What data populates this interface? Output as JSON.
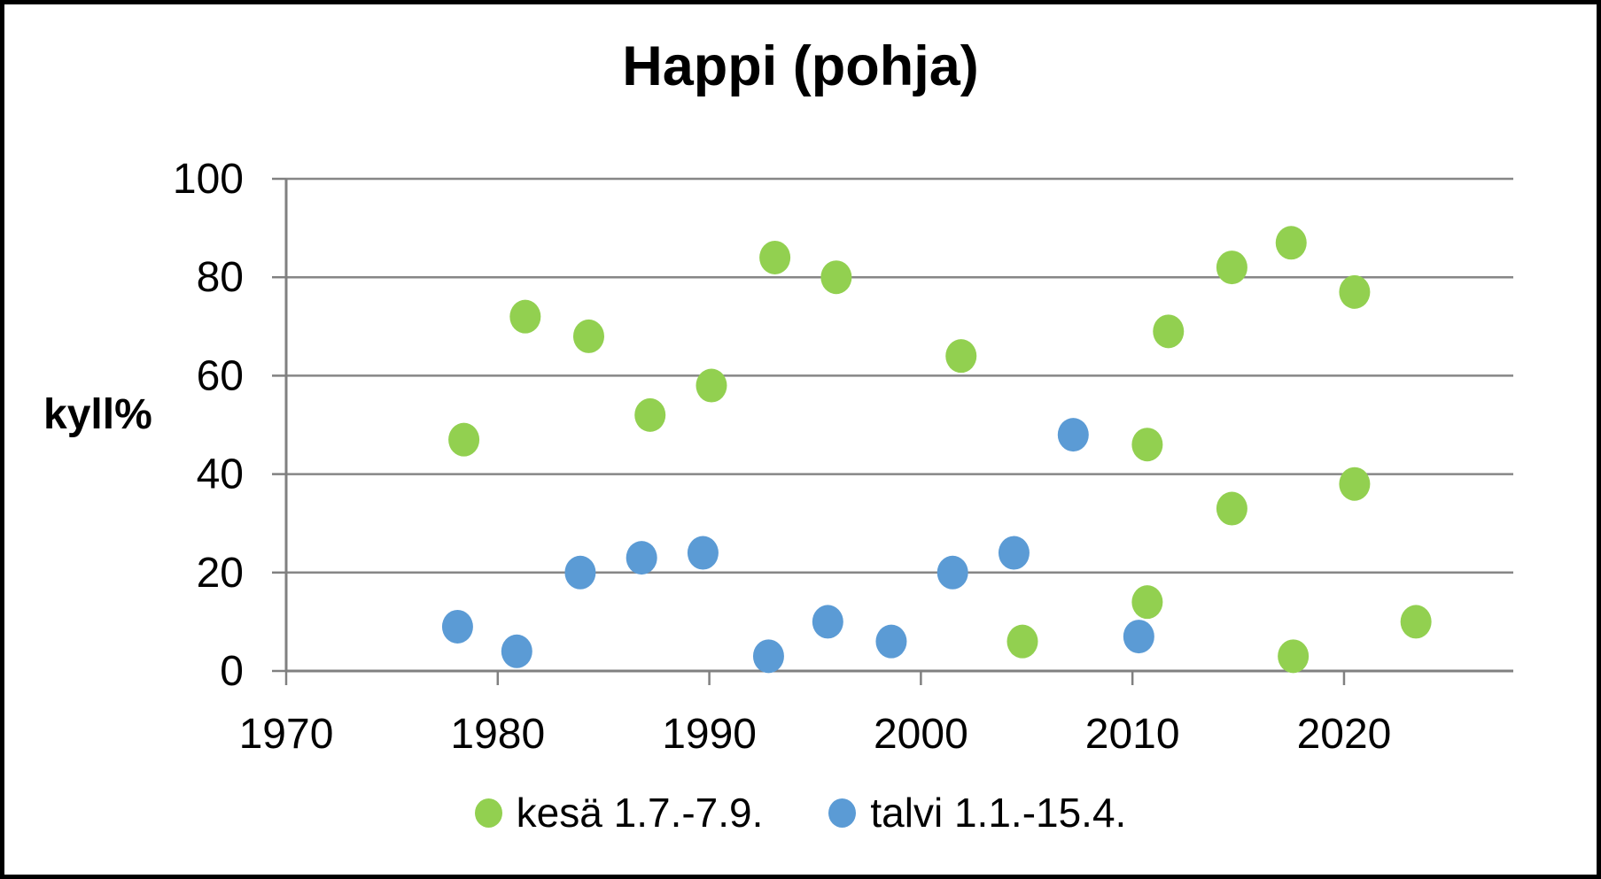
{
  "title": "Happi (pohja)",
  "y_axis_label": "kyll%",
  "legend": [
    {
      "label": "kesä 1.7.-7.9.",
      "color": "#92d050"
    },
    {
      "label": "talvi 1.1.-15.4.",
      "color": "#5b9bd5"
    }
  ],
  "colors": {
    "grid": "#868686",
    "axis": "#808080",
    "text": "#000000",
    "background": "#ffffff",
    "frame": "#000000",
    "kesa_green": "#92d050",
    "talvi_blue": "#5b9bd5"
  },
  "chart_data": {
    "type": "scatter",
    "title": "Happi (pohja)",
    "xlabel": "",
    "ylabel": "kyll%",
    "xlim": [
      1970,
      2028
    ],
    "ylim": [
      0,
      100
    ],
    "x_ticks": [
      1970,
      1980,
      1990,
      2000,
      2010,
      2020
    ],
    "y_ticks": [
      0,
      20,
      40,
      60,
      80,
      100
    ],
    "grid": "horizontal",
    "legend_position": "bottom",
    "series": [
      {
        "name": "kesä 1.7.-7.9.",
        "color": "#92d050",
        "points": [
          [
            1978.4,
            47
          ],
          [
            1981.3,
            72
          ],
          [
            1984.3,
            68
          ],
          [
            1987.2,
            52
          ],
          [
            1990.1,
            58
          ],
          [
            1993.1,
            84
          ],
          [
            1996.0,
            80
          ],
          [
            2001.9,
            64
          ],
          [
            2004.8,
            6
          ],
          [
            2010.7,
            46
          ],
          [
            2010.7,
            14
          ],
          [
            2011.7,
            69
          ],
          [
            2014.7,
            82
          ],
          [
            2014.7,
            33
          ],
          [
            2017.5,
            87
          ],
          [
            2017.6,
            3
          ],
          [
            2020.5,
            77
          ],
          [
            2020.5,
            38
          ],
          [
            2023.4,
            10
          ]
        ]
      },
      {
        "name": "talvi 1.1.-15.4.",
        "color": "#5b9bd5",
        "points": [
          [
            1978.1,
            9
          ],
          [
            1980.9,
            4
          ],
          [
            1983.9,
            20
          ],
          [
            1986.8,
            23
          ],
          [
            1989.7,
            24
          ],
          [
            1992.8,
            3
          ],
          [
            1995.6,
            10
          ],
          [
            1998.6,
            6
          ],
          [
            2001.5,
            20
          ],
          [
            2004.4,
            24
          ],
          [
            2007.2,
            48
          ],
          [
            2010.3,
            7
          ]
        ]
      }
    ]
  }
}
